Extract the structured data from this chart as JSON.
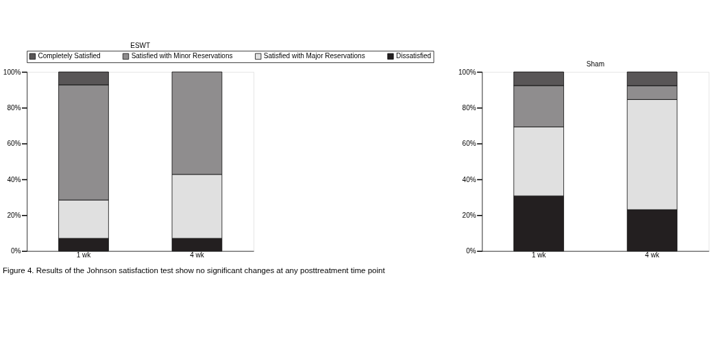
{
  "chart_data": [
    {
      "type": "bar",
      "title": "ESWT",
      "stacked": true,
      "legend": "top",
      "categories": [
        "1 wk",
        "4 wk"
      ],
      "ylim": [
        0,
        100
      ],
      "yticks": [
        {
          "value": 0,
          "label": "0%"
        },
        {
          "value": 20,
          "label": "20%"
        },
        {
          "value": 40,
          "label": "40%"
        },
        {
          "value": 60,
          "label": "60%"
        },
        {
          "value": 80,
          "label": "80%"
        },
        {
          "value": 100,
          "label": "100%"
        }
      ],
      "series": [
        {
          "name": "Dissatisfied",
          "color": "#231f20",
          "values": [
            7.1,
            7.1
          ]
        },
        {
          "name": "Satisfied with Major Reservations",
          "color": "#e0e0e0",
          "values": [
            21.4,
            35.7
          ]
        },
        {
          "name": "Satisfied with Minor Reservations",
          "color": "#8f8d8e",
          "values": [
            64.3,
            57.2
          ]
        },
        {
          "name": "Completely Satisfied",
          "color": "#595657",
          "values": [
            7.2,
            null
          ]
        }
      ],
      "annotations": [
        "Figure 4. Results of the Johnson satisfaction test show no significant changes at any posttreatment time point"
      ]
    },
    {
      "type": "bar",
      "title": "Sham",
      "stacked": true,
      "categories": [
        "1 wk",
        "4 wk"
      ],
      "ylim": [
        0,
        100
      ],
      "yticks": [
        {
          "value": 0,
          "label": "0%"
        },
        {
          "value": 20,
          "label": "20%"
        },
        {
          "value": 40,
          "label": "40%"
        },
        {
          "value": 60,
          "label": "60%"
        },
        {
          "value": 80,
          "label": "80%"
        },
        {
          "value": 100,
          "label": "100%"
        }
      ],
      "series": [
        {
          "color": "#231f20",
          "values": [
            30.8,
            23.1
          ]
        },
        {
          "color": "#e0e0e0",
          "values": [
            38.5,
            61.5
          ]
        },
        {
          "color": "#8f8d8e",
          "values": [
            23.1,
            7.7
          ]
        },
        {
          "color": "#595657",
          "values": [
            7.6,
            7.7
          ]
        }
      ]
    }
  ]
}
